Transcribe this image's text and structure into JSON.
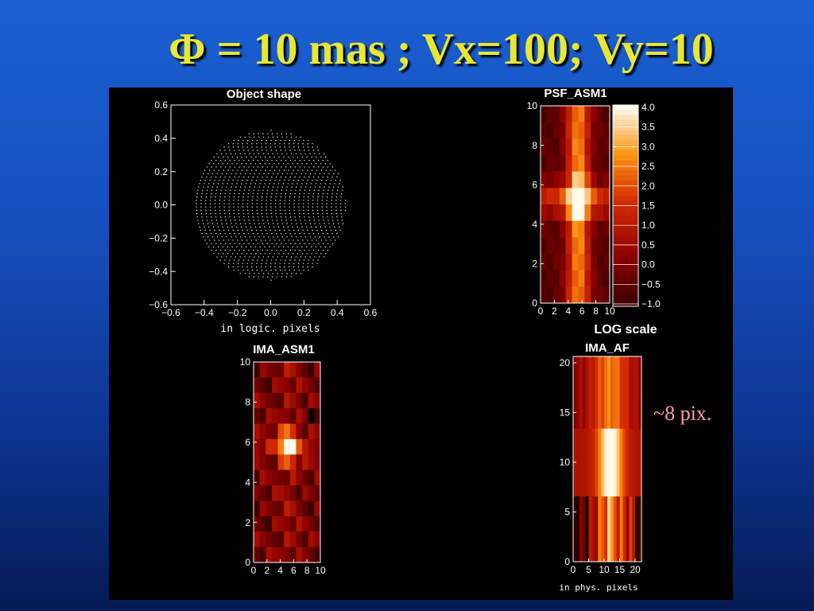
{
  "slide": {
    "title": "Φ = 10 mas ; Vx=100; Vy=10",
    "annotation": "~8 pix."
  },
  "colors": {
    "background": "#1650c0",
    "title": "#e8e832",
    "annotation": "#ff9aa8",
    "panel": "#000000"
  },
  "panels": {
    "object_shape": {
      "title": "Object shape",
      "xlabel": "in logic. pixels",
      "x_ticks": [
        "−0.6",
        "−0.4",
        "−0.2",
        "0.0",
        "0.2",
        "0.4",
        "0.6"
      ],
      "y_ticks": [
        "0.6",
        "0.4",
        "0.2",
        "0.0",
        "−0.2",
        "−0.4",
        "−0.6"
      ],
      "range": [
        -0.6,
        0.6
      ],
      "disk_radius": 0.45
    },
    "psf": {
      "title": "PSF_ASM1",
      "x_ticks": [
        "0",
        "2",
        "4",
        "6",
        "8",
        "10"
      ],
      "y_ticks": [
        "10",
        "8",
        "6",
        "4",
        "2",
        "0"
      ]
    },
    "colorbar": {
      "ticks": [
        "4.0",
        "3.5",
        "3.0",
        "2.5",
        "2.0",
        "1.5",
        "1.0",
        "0.5",
        "0.0",
        "−0.5",
        "−1.0"
      ],
      "range": [
        -1.0,
        4.0
      ]
    },
    "ima_asm1": {
      "title": "IMA_ASM1",
      "x_ticks": [
        "0",
        "2",
        "4",
        "6",
        "8",
        "10"
      ],
      "y_ticks": [
        "10",
        "8",
        "6",
        "4",
        "2",
        "0"
      ]
    },
    "ima_af": {
      "title": "IMA_AF",
      "log_label": "LOG scale",
      "xlabel": "in phys. pixels",
      "x_ticks": [
        "0",
        "5",
        "10",
        "15",
        "20"
      ],
      "y_ticks": [
        "20",
        "15",
        "10",
        "5",
        "0"
      ]
    }
  }
}
